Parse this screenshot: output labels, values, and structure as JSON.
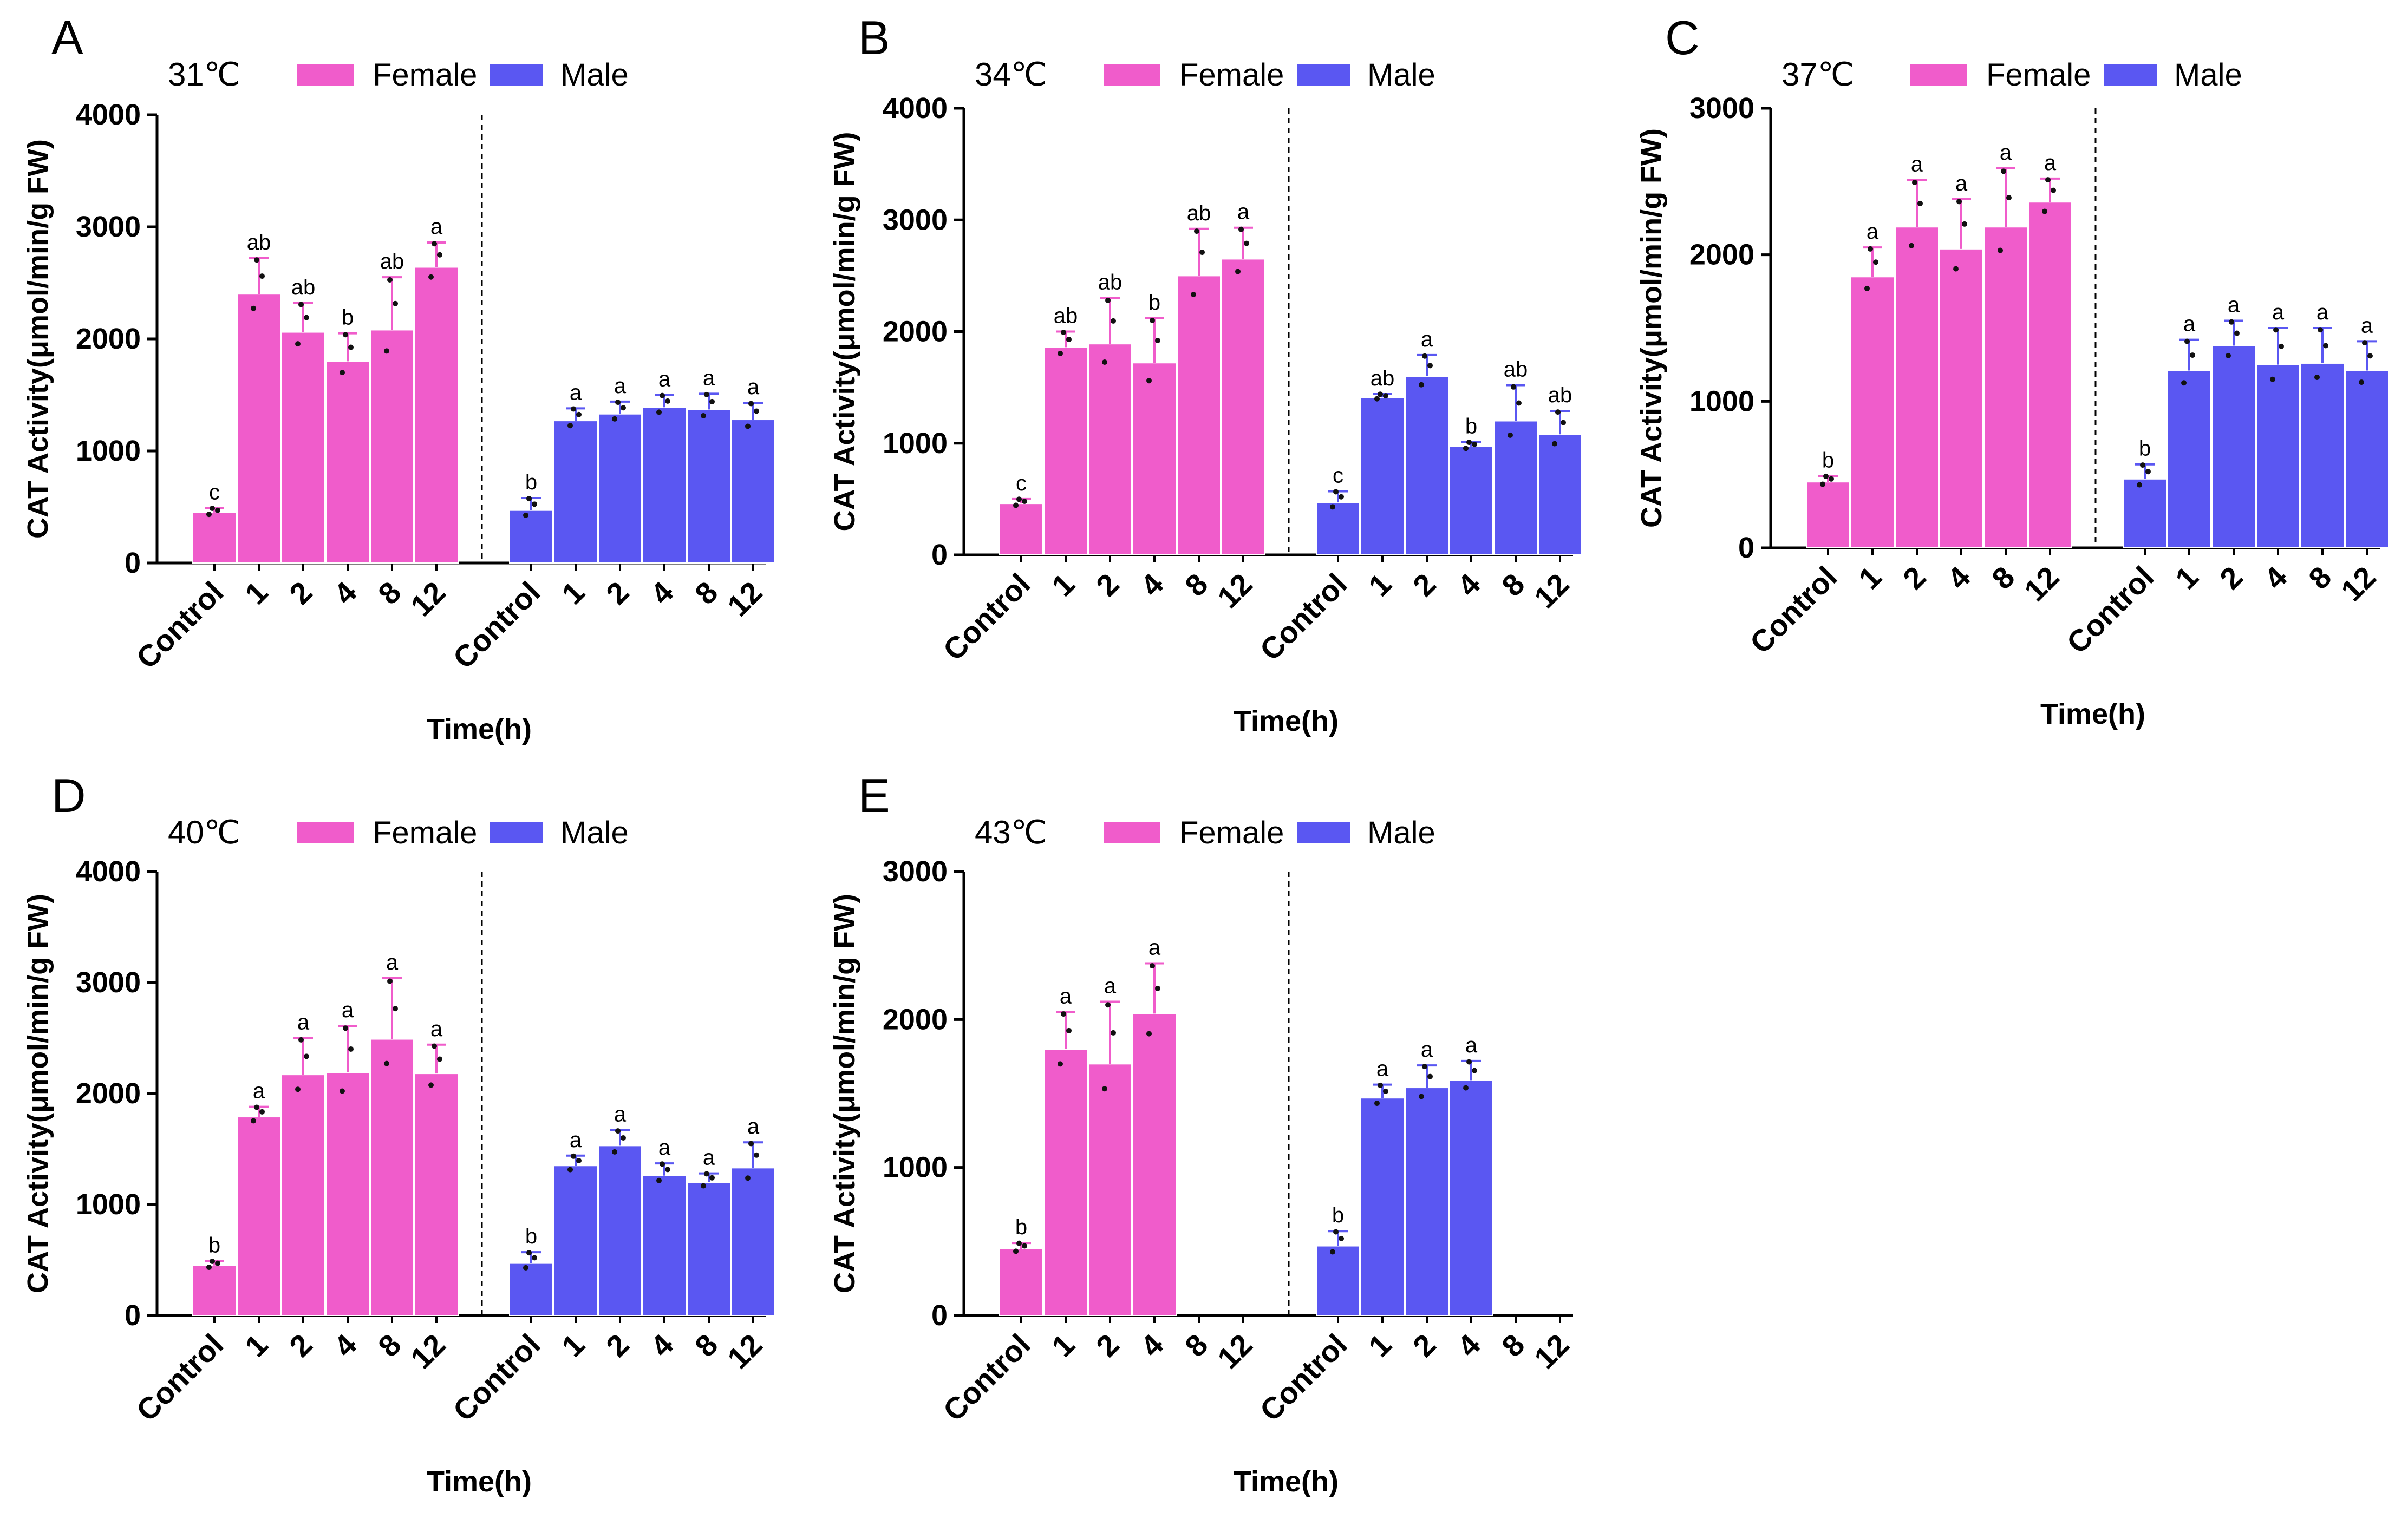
{
  "colors": {
    "female": "#F05CCB",
    "male": "#5A57F2",
    "axis": "#000000"
  },
  "legend": {
    "female": "Female",
    "male": "Male"
  },
  "chart_data": [
    {
      "panel": "A",
      "type": "bar",
      "temperature": "31℃",
      "ylabel": "CAT Activity(μmol/min/g FW)",
      "xlabel": "Time(h)",
      "ylim": [
        0,
        4000
      ],
      "yticks": [
        "0",
        "1000",
        "2000",
        "3000",
        "4000"
      ],
      "categories": [
        "Control",
        "1",
        "2",
        "4",
        "8",
        "12"
      ],
      "series": [
        {
          "name": "Female",
          "values": [
            450,
            2400,
            2060,
            1800,
            2080,
            2640
          ],
          "errors": [
            40,
            320,
            260,
            250,
            470,
            220
          ],
          "letters": [
            "c",
            "ab",
            "ab",
            "b",
            "ab",
            "a"
          ]
        },
        {
          "name": "Male",
          "values": [
            470,
            1270,
            1330,
            1390,
            1370,
            1280
          ],
          "errors": [
            110,
            110,
            110,
            110,
            140,
            150
          ],
          "letters": [
            "b",
            "a",
            "a",
            "a",
            "a",
            "a"
          ]
        }
      ]
    },
    {
      "panel": "B",
      "type": "bar",
      "temperature": "34℃",
      "ylabel": "CAT Activity(μmol/min/g FW)",
      "xlabel": "Time(h)",
      "ylim": [
        0,
        4000
      ],
      "yticks": [
        "0",
        "1000",
        "2000",
        "3000",
        "4000"
      ],
      "categories": [
        "Control",
        "1",
        "2",
        "4",
        "8",
        "12"
      ],
      "series": [
        {
          "name": "Female",
          "values": [
            460,
            1860,
            1890,
            1720,
            2500,
            2650
          ],
          "errors": [
            40,
            140,
            410,
            400,
            420,
            280
          ],
          "letters": [
            "c",
            "ab",
            "ab",
            "b",
            "ab",
            "a"
          ]
        },
        {
          "name": "Male",
          "values": [
            470,
            1410,
            1600,
            970,
            1200,
            1080
          ],
          "errors": [
            100,
            30,
            190,
            40,
            320,
            210
          ],
          "letters": [
            "c",
            "ab",
            "a",
            "b",
            "ab",
            "ab"
          ]
        }
      ]
    },
    {
      "panel": "C",
      "type": "bar",
      "temperature": "37℃",
      "ylabel": "CAT Activity(μmol/min/g FW)",
      "xlabel": "Time(h)",
      "ylim": [
        0,
        3000
      ],
      "yticks": [
        "0",
        "1000",
        "2000",
        "3000"
      ],
      "categories": [
        "Control",
        "1",
        "2",
        "4",
        "8",
        "12"
      ],
      "series": [
        {
          "name": "Female",
          "values": [
            450,
            1850,
            2190,
            2040,
            2190,
            2360
          ],
          "errors": [
            40,
            200,
            320,
            340,
            400,
            160
          ],
          "letters": [
            "b",
            "a",
            "a",
            "a",
            "a",
            "a"
          ]
        },
        {
          "name": "Male",
          "values": [
            470,
            1210,
            1380,
            1250,
            1260,
            1210
          ],
          "errors": [
            100,
            210,
            170,
            250,
            240,
            200
          ],
          "letters": [
            "b",
            "a",
            "a",
            "a",
            "a",
            "a"
          ]
        }
      ]
    },
    {
      "panel": "D",
      "type": "bar",
      "temperature": "40℃",
      "ylabel": "CAT Activity(μmol/min/g FW)",
      "xlabel": "Time(h)",
      "ylim": [
        0,
        4000
      ],
      "yticks": [
        "0",
        "1000",
        "2000",
        "3000",
        "4000"
      ],
      "categories": [
        "Control",
        "1",
        "2",
        "4",
        "8",
        "12"
      ],
      "series": [
        {
          "name": "Female",
          "values": [
            450,
            1790,
            2170,
            2190,
            2490,
            2180
          ],
          "errors": [
            40,
            90,
            330,
            420,
            550,
            260
          ],
          "letters": [
            "b",
            "a",
            "a",
            "a",
            "a",
            "a"
          ]
        },
        {
          "name": "Male",
          "values": [
            470,
            1350,
            1530,
            1260,
            1200,
            1330
          ],
          "errors": [
            100,
            90,
            140,
            110,
            80,
            230
          ],
          "letters": [
            "b",
            "a",
            "a",
            "a",
            "a",
            "a"
          ]
        }
      ]
    },
    {
      "panel": "E",
      "type": "bar",
      "temperature": "43℃",
      "ylabel": "CAT Activity(μmol/min/g FW)",
      "xlabel": "Time(h)",
      "ylim": [
        0,
        3000
      ],
      "yticks": [
        "0",
        "1000",
        "2000",
        "3000"
      ],
      "categories": [
        "Control",
        "1",
        "2",
        "4",
        "8",
        "12"
      ],
      "series": [
        {
          "name": "Female",
          "values": [
            450,
            1800,
            1700,
            2040,
            null,
            null
          ],
          "errors": [
            40,
            250,
            420,
            340,
            null,
            null
          ],
          "letters": [
            "b",
            "a",
            "a",
            "a",
            "",
            ""
          ]
        },
        {
          "name": "Male",
          "values": [
            470,
            1470,
            1540,
            1590,
            null,
            null
          ],
          "errors": [
            100,
            90,
            150,
            130,
            null,
            null
          ],
          "letters": [
            "b",
            "a",
            "a",
            "a",
            "",
            ""
          ]
        }
      ]
    }
  ]
}
